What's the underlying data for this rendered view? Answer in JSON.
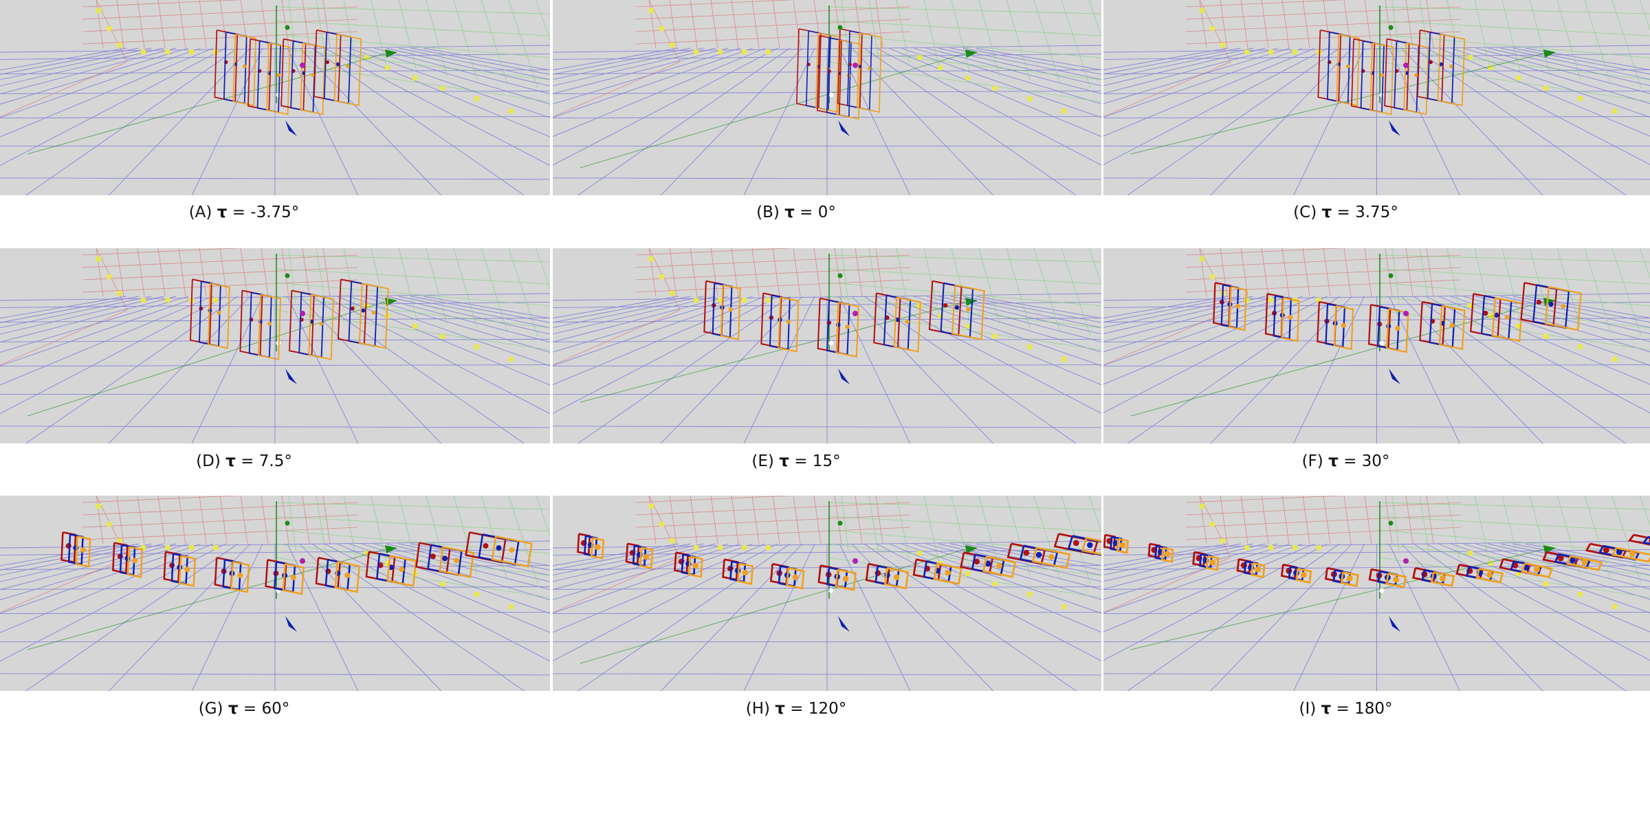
{
  "figure": {
    "panels": [
      {
        "id": "A",
        "label": "(A)",
        "symbol": "τ",
        "equals": "=",
        "value": "-3.75°",
        "spread": 0.12,
        "count": 4
      },
      {
        "id": "B",
        "label": "(B)",
        "symbol": "τ",
        "equals": "=",
        "value": "0°",
        "spread": 0.0,
        "count": 3
      },
      {
        "id": "C",
        "label": "(C)",
        "symbol": "τ",
        "equals": "=",
        "value": "3.75°",
        "spread": 0.12,
        "count": 4
      },
      {
        "id": "D",
        "label": "(D)",
        "symbol": "τ",
        "equals": "=",
        "value": "7.5°",
        "spread": 0.22,
        "count": 4
      },
      {
        "id": "E",
        "label": "(E)",
        "symbol": "τ",
        "equals": "=",
        "value": "15°",
        "spread": 0.38,
        "count": 5
      },
      {
        "id": "F",
        "label": "(F)",
        "symbol": "τ",
        "equals": "=",
        "value": "30°",
        "spread": 0.55,
        "count": 7
      },
      {
        "id": "G",
        "label": "(G)",
        "symbol": "τ",
        "equals": "=",
        "value": "60°",
        "spread": 0.75,
        "count": 9
      },
      {
        "id": "H",
        "label": "(H)",
        "symbol": "τ",
        "equals": "=",
        "value": "120°",
        "spread": 0.9,
        "count": 11
      },
      {
        "id": "I",
        "label": "(I)",
        "symbol": "τ",
        "equals": "=",
        "value": "180°",
        "spread": 1.0,
        "count": 13
      }
    ],
    "colors": {
      "background": "#d6d6d6",
      "floor_grid": "#6a6ad8",
      "back_grid": "#d86a6a",
      "side_grid": "#7ccf7c",
      "tick_marker": "#e8e84a",
      "chain_red": "#b01010",
      "chain_blue": "#1020b0",
      "chain_orange": "#f0a020",
      "axis_green": "#1a8a1a",
      "joint_purple": "#b020b0"
    }
  }
}
